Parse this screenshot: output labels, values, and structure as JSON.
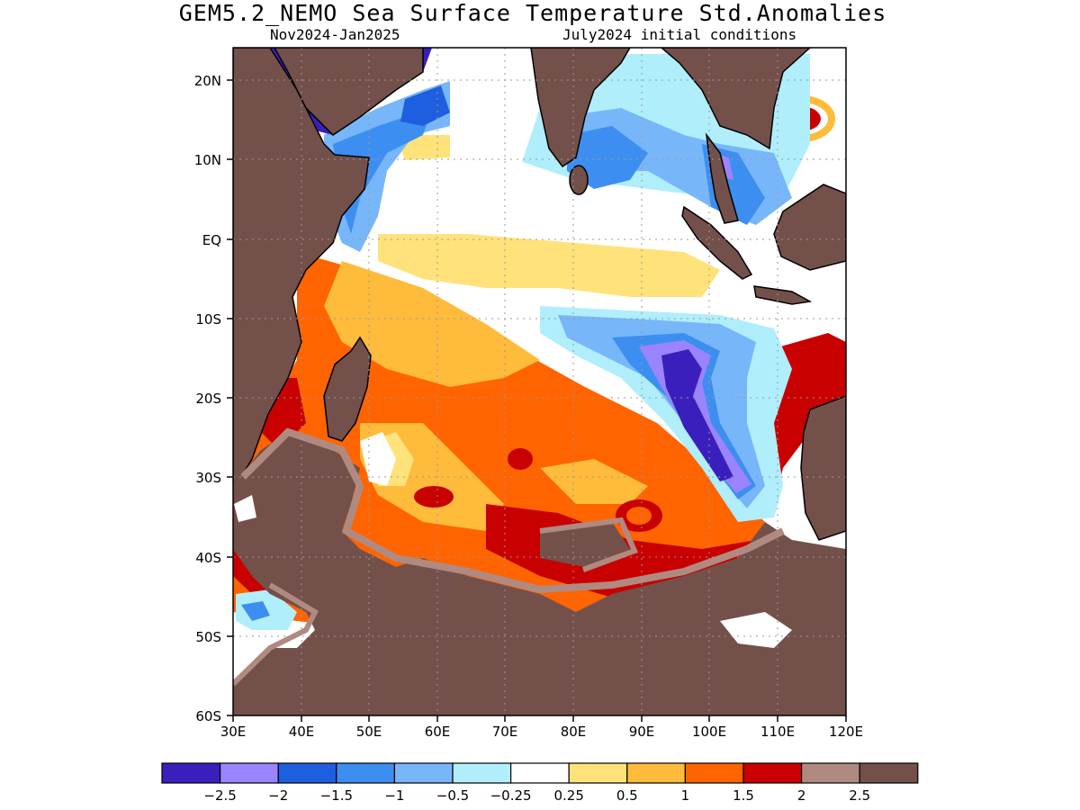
{
  "header": {
    "title": "GEM5.2_NEMO Sea Surface Temperature Std.Anomalies",
    "period": "Nov2024-Jan2025",
    "init": "July2024 initial conditions"
  },
  "map": {
    "lat_ticks": [
      "20N",
      "10N",
      "EQ",
      "10S",
      "20S",
      "30S",
      "40S",
      "50S",
      "60S"
    ],
    "lon_ticks": [
      "30E",
      "40E",
      "50E",
      "60E",
      "70E",
      "80E",
      "90E",
      "100E",
      "110E",
      "120E"
    ],
    "lon_range": [
      30,
      120
    ],
    "lat_range": [
      -60,
      24
    ]
  },
  "legend": {
    "labels": [
      "-2.5",
      "-2",
      "-1.5",
      "-1",
      "-0.5",
      "-0.25",
      "0.25",
      "0.5",
      "1",
      "1.5",
      "2",
      "2.5"
    ],
    "colors": [
      "#3a1fbd",
      "#9b84ff",
      "#1e5fe0",
      "#3c8ff0",
      "#78b6fa",
      "#b0eefc",
      "#ffffff",
      "#ffe27a",
      "#ffbb3c",
      "#ff6400",
      "#c80000",
      "#b08a80",
      "#74504a"
    ]
  }
}
